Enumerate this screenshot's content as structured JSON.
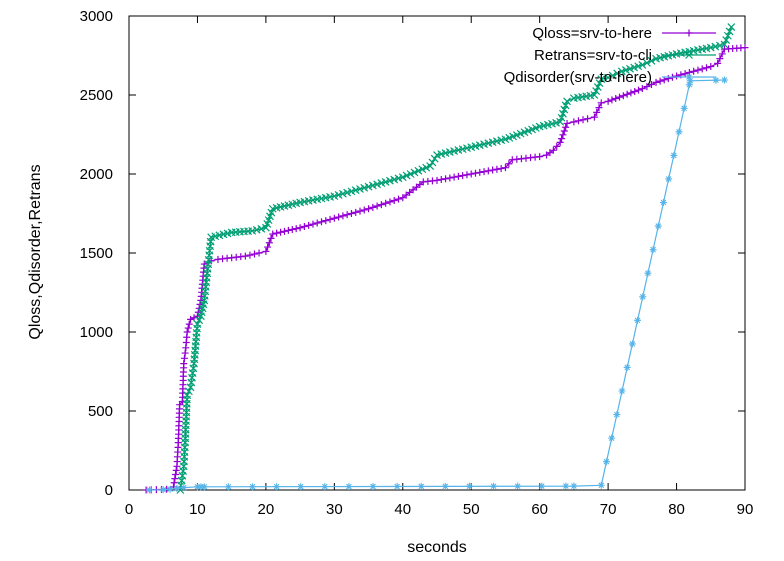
{
  "chart_data": {
    "type": "line",
    "title": "",
    "xlabel": "seconds",
    "ylabel": "Qloss,Qdisorder,Retrans",
    "xlim": [
      0,
      90
    ],
    "ylim": [
      0,
      3000
    ],
    "x_ticks": [
      0,
      10,
      20,
      30,
      40,
      50,
      60,
      70,
      80,
      90
    ],
    "y_ticks": [
      0,
      500,
      1000,
      1500,
      2000,
      2500,
      3000
    ],
    "grid": false,
    "legend_position": "top-right",
    "series": [
      {
        "name": "Qloss=srv-to-here",
        "color": "#9400d3",
        "marker": "plus",
        "points": [
          [
            2.5,
            0
          ],
          [
            4,
            2
          ],
          [
            5.5,
            5
          ],
          [
            6.5,
            20
          ],
          [
            7,
            150
          ],
          [
            7.2,
            300
          ],
          [
            7.4,
            540
          ],
          [
            7.8,
            560
          ],
          [
            8,
            800
          ],
          [
            8.3,
            900
          ],
          [
            8.5,
            1000
          ],
          [
            8.8,
            1050
          ],
          [
            9,
            1080
          ],
          [
            9.5,
            1090
          ],
          [
            10,
            1100
          ],
          [
            10.5,
            1200
          ],
          [
            11,
            1430
          ],
          [
            12,
            1450
          ],
          [
            13,
            1460
          ],
          [
            15,
            1470
          ],
          [
            17,
            1480
          ],
          [
            19,
            1500
          ],
          [
            20,
            1510
          ],
          [
            21,
            1620
          ],
          [
            25,
            1660
          ],
          [
            30,
            1720
          ],
          [
            35,
            1780
          ],
          [
            40,
            1850
          ],
          [
            43,
            1950
          ],
          [
            45,
            1960
          ],
          [
            50,
            2000
          ],
          [
            55,
            2040
          ],
          [
            56,
            2090
          ],
          [
            60,
            2110
          ],
          [
            61,
            2120
          ],
          [
            62,
            2150
          ],
          [
            63,
            2200
          ],
          [
            64,
            2320
          ],
          [
            65,
            2330
          ],
          [
            67,
            2350
          ],
          [
            68,
            2360
          ],
          [
            69,
            2450
          ],
          [
            70,
            2460
          ],
          [
            75,
            2540
          ],
          [
            77,
            2580
          ],
          [
            80,
            2620
          ],
          [
            85,
            2680
          ],
          [
            86,
            2700
          ],
          [
            87,
            2790
          ],
          [
            90,
            2800
          ]
        ]
      },
      {
        "name": "Retrans=srv-to-cli",
        "color": "#009e73",
        "marker": "cross",
        "points": [
          [
            7.5,
            0
          ],
          [
            8,
            150
          ],
          [
            8.2,
            300
          ],
          [
            8.5,
            600
          ],
          [
            9,
            650
          ],
          [
            9.5,
            800
          ],
          [
            10,
            1050
          ],
          [
            10.5,
            1100
          ],
          [
            11,
            1200
          ],
          [
            11.5,
            1400
          ],
          [
            12,
            1600
          ],
          [
            15,
            1630
          ],
          [
            18,
            1640
          ],
          [
            20,
            1660
          ],
          [
            21,
            1780
          ],
          [
            25,
            1820
          ],
          [
            30,
            1860
          ],
          [
            35,
            1920
          ],
          [
            40,
            1980
          ],
          [
            44,
            2050
          ],
          [
            45,
            2120
          ],
          [
            50,
            2170
          ],
          [
            55,
            2220
          ],
          [
            60,
            2300
          ],
          [
            63,
            2330
          ],
          [
            64,
            2460
          ],
          [
            65,
            2480
          ],
          [
            68,
            2500
          ],
          [
            69,
            2600
          ],
          [
            70,
            2610
          ],
          [
            72,
            2650
          ],
          [
            75,
            2690
          ],
          [
            77,
            2730
          ],
          [
            80,
            2760
          ],
          [
            85,
            2800
          ],
          [
            87,
            2820
          ],
          [
            88,
            2930
          ]
        ]
      },
      {
        "name": "Qdisorder(srv-to-here)",
        "color": "#56b4e9",
        "marker": "star",
        "points": [
          [
            3,
            0
          ],
          [
            5,
            2
          ],
          [
            6,
            5
          ],
          [
            7,
            10
          ],
          [
            8,
            15
          ],
          [
            10,
            20
          ],
          [
            10.5,
            20
          ],
          [
            11,
            20
          ],
          [
            65,
            25
          ],
          [
            69,
            30
          ],
          [
            82,
            2590
          ],
          [
            87,
            2595
          ]
        ]
      }
    ]
  }
}
